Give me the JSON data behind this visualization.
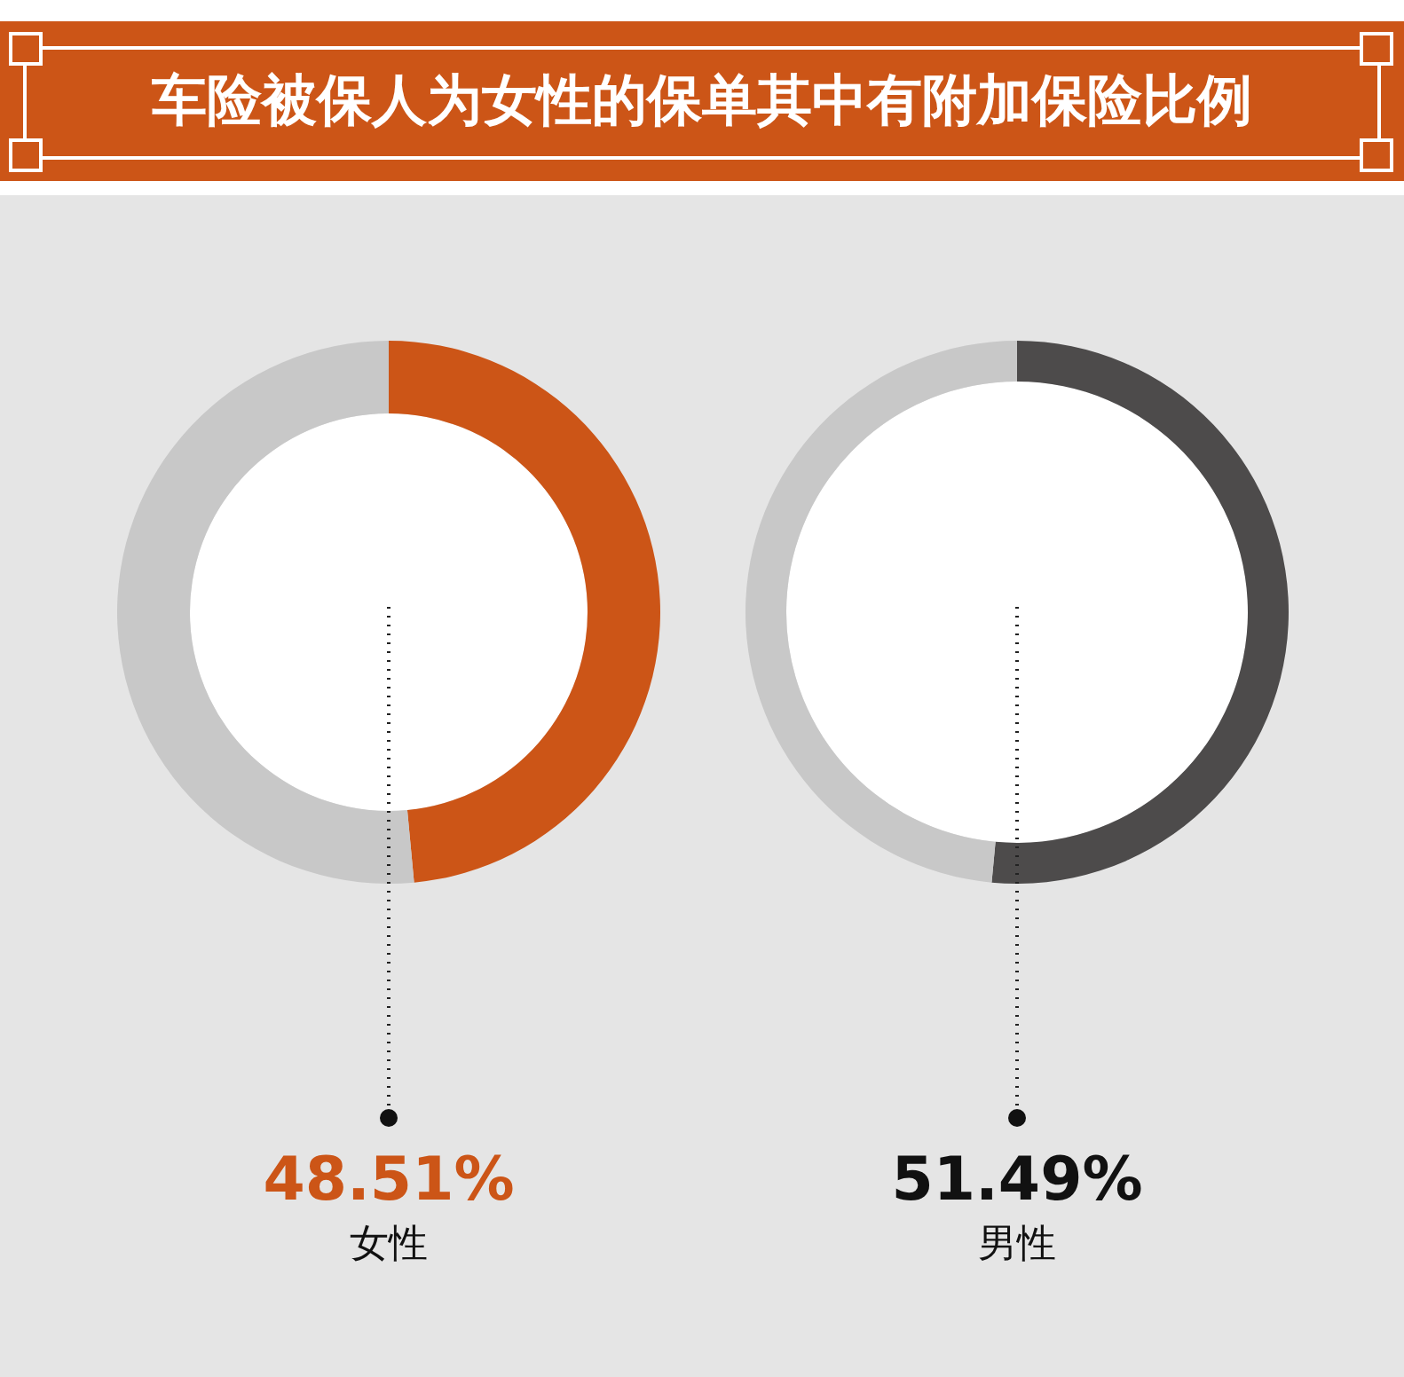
{
  "chart_data": [
    {
      "type": "donut",
      "title": "车险被保人为女性的保单其中有附加保险比例",
      "categories": [
        "女性",
        null
      ],
      "values": [
        48.51,
        51.49
      ],
      "colors": [
        "#cc5517",
        "#c8c8c8"
      ],
      "value_labels": [
        "48.51%",
        null
      ]
    },
    {
      "type": "donut",
      "categories": [
        "男性",
        null
      ],
      "values": [
        51.49,
        48.51
      ],
      "colors": [
        "#4d4b4b",
        "#c8c8c8"
      ],
      "value_labels": [
        "51.49%",
        null
      ]
    }
  ]
}
